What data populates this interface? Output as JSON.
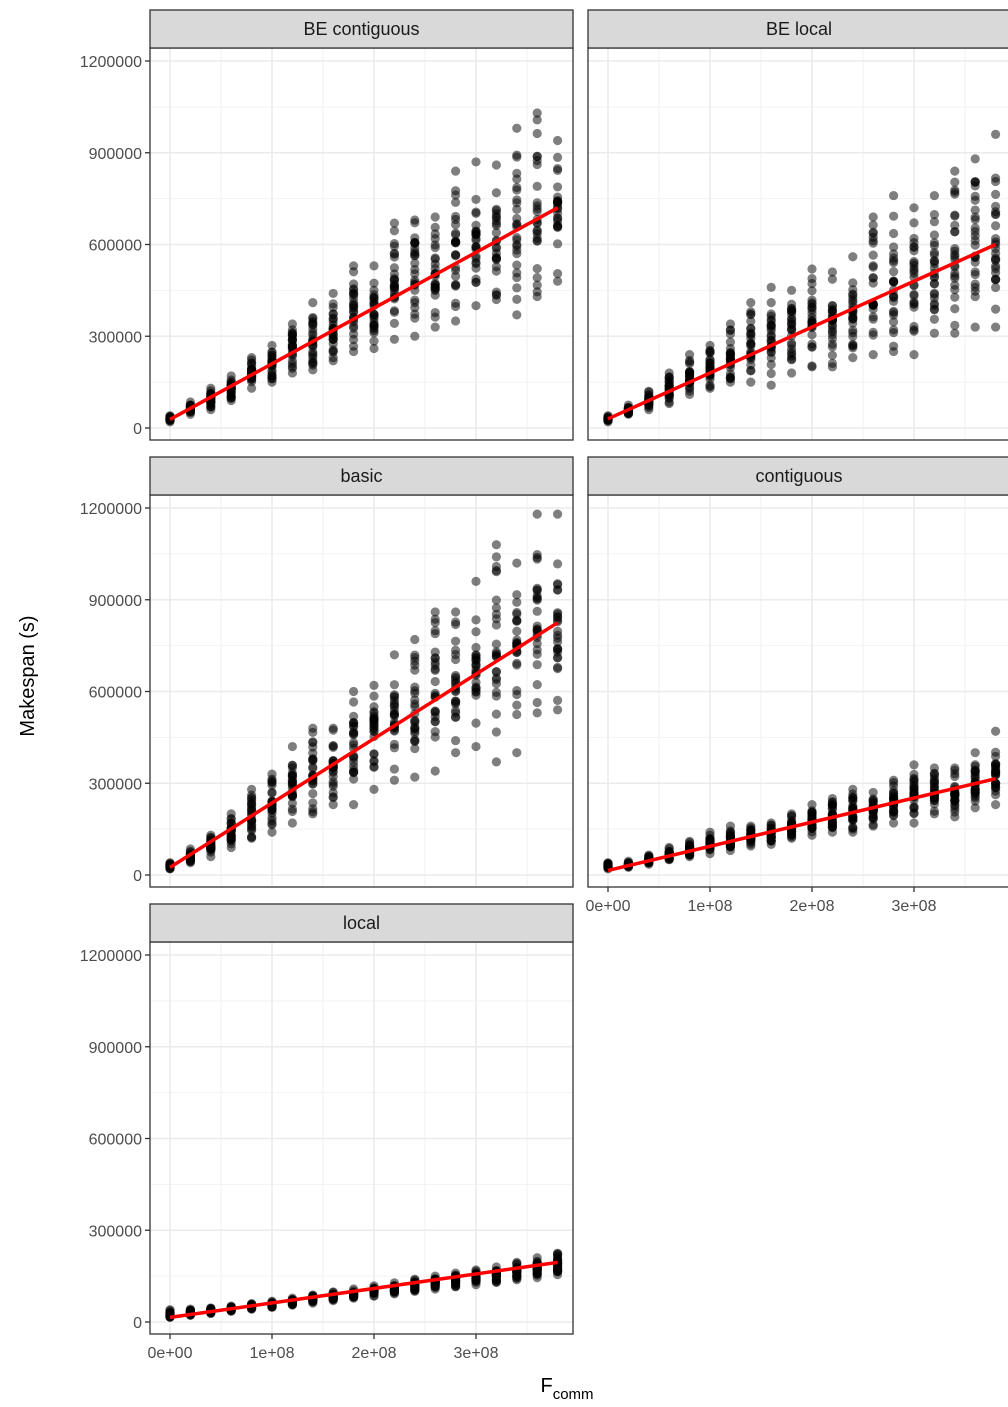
{
  "chart_data": {
    "type": "scatter",
    "facets": [
      "BE contiguous",
      "BE local",
      "basic",
      "contiguous",
      "local"
    ],
    "xlabel": {
      "main": "F",
      "subscript": "comm"
    },
    "ylabel": "Makespan (s)",
    "x_ticks": [
      0,
      100000000,
      200000000,
      300000000
    ],
    "x_tick_labels": [
      "0e+00",
      "1e+08",
      "2e+08",
      "3e+08"
    ],
    "y_ticks": [
      0,
      300000,
      600000,
      900000,
      1200000
    ],
    "y_tick_labels": [
      "0",
      "300000",
      "600000",
      "900000",
      "1200000"
    ],
    "xlim": [
      -10000000,
      390000000
    ],
    "ylim": [
      -60000,
      1260000
    ],
    "x_values": [
      0,
      20000000,
      40000000,
      60000000,
      80000000,
      100000000,
      120000000,
      140000000,
      160000000,
      180000000,
      200000000,
      220000000,
      240000000,
      260000000,
      280000000,
      300000000,
      320000000,
      340000000,
      360000000,
      380000000
    ],
    "point_color": "#000000",
    "point_opacity": 0.5,
    "fit_color": "#ff0000",
    "grid": true,
    "series": [
      {
        "name": "BE contiguous",
        "fit": [
          [
            0,
            28000
          ],
          [
            380000000,
            720000
          ]
        ],
        "y_min": [
          20000,
          45000,
          60000,
          90000,
          130000,
          150000,
          180000,
          190000,
          220000,
          250000,
          260000,
          290000,
          300000,
          330000,
          350000,
          400000,
          420000,
          370000,
          430000,
          480000
        ],
        "y_max": [
          40000,
          85000,
          130000,
          170000,
          230000,
          270000,
          340000,
          410000,
          440000,
          530000,
          530000,
          670000,
          680000,
          690000,
          840000,
          870000,
          860000,
          980000,
          1030000,
          940000
        ]
      },
      {
        "name": "BE local",
        "fit": [
          [
            0,
            30000
          ],
          [
            380000000,
            600000
          ]
        ],
        "y_min": [
          20000,
          45000,
          60000,
          80000,
          110000,
          130000,
          150000,
          150000,
          140000,
          180000,
          200000,
          200000,
          230000,
          240000,
          250000,
          240000,
          310000,
          310000,
          330000,
          330000
        ],
        "y_max": [
          40000,
          75000,
          120000,
          180000,
          240000,
          270000,
          340000,
          410000,
          460000,
          450000,
          520000,
          510000,
          560000,
          690000,
          760000,
          720000,
          760000,
          840000,
          880000,
          960000
        ]
      },
      {
        "name": "basic",
        "fit": [
          [
            0,
            25000
          ],
          [
            380000000,
            825000
          ]
        ],
        "y_min": [
          20000,
          40000,
          60000,
          90000,
          120000,
          140000,
          170000,
          200000,
          230000,
          230000,
          280000,
          310000,
          320000,
          340000,
          400000,
          420000,
          370000,
          400000,
          530000,
          540000
        ],
        "y_max": [
          40000,
          85000,
          130000,
          200000,
          280000,
          330000,
          420000,
          480000,
          480000,
          600000,
          620000,
          720000,
          770000,
          860000,
          860000,
          960000,
          1080000,
          1020000,
          1180000,
          1180000
        ]
      },
      {
        "name": "contiguous",
        "fit": [
          [
            0,
            15000
          ],
          [
            380000000,
            315000
          ]
        ],
        "y_min": [
          20000,
          25000,
          35000,
          50000,
          60000,
          70000,
          80000,
          95000,
          100000,
          120000,
          130000,
          140000,
          140000,
          160000,
          170000,
          170000,
          200000,
          190000,
          220000,
          230000
        ],
        "y_max": [
          40000,
          45000,
          65000,
          90000,
          110000,
          140000,
          160000,
          160000,
          170000,
          200000,
          230000,
          250000,
          280000,
          270000,
          310000,
          360000,
          350000,
          350000,
          400000,
          470000
        ]
      },
      {
        "name": "local",
        "fit": [
          [
            0,
            15000
          ],
          [
            380000000,
            195000
          ]
        ],
        "y_min": [
          15000,
          22000,
          28000,
          35000,
          42000,
          48000,
          55000,
          62000,
          70000,
          78000,
          85000,
          92000,
          100000,
          108000,
          115000,
          122000,
          130000,
          138000,
          145000,
          155000
        ],
        "y_max": [
          40000,
          42000,
          46000,
          52000,
          60000,
          68000,
          78000,
          88000,
          98000,
          108000,
          118000,
          128000,
          140000,
          150000,
          160000,
          170000,
          180000,
          195000,
          210000,
          225000
        ]
      }
    ]
  }
}
